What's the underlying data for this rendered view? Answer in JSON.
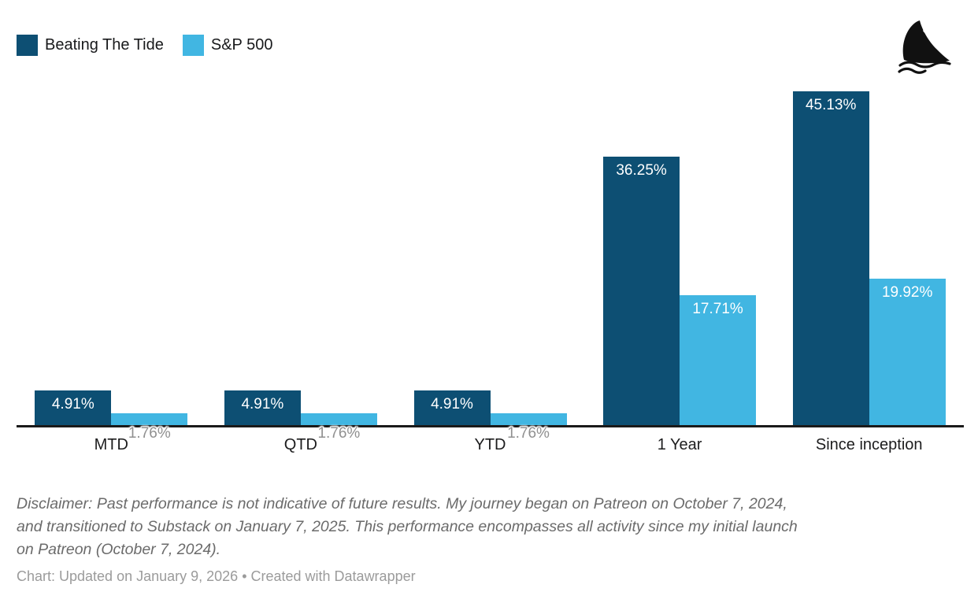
{
  "chart_data": {
    "type": "bar",
    "categories": [
      "MTD",
      "QTD",
      "YTD",
      "1 Year",
      "Since inception"
    ],
    "series": [
      {
        "name": "Beating The Tide",
        "color": "#0d4f73",
        "values": [
          4.91,
          4.91,
          4.91,
          36.25,
          45.13
        ]
      },
      {
        "name": "S&P 500",
        "color": "#41b6e2",
        "values": [
          1.76,
          1.76,
          1.76,
          17.71,
          19.92
        ]
      }
    ],
    "value_format": "0.00%",
    "data_labels": [
      "4.91%",
      "4.91%",
      "4.91%",
      "36.25%",
      "45.13%",
      "1.76%",
      "1.76%",
      "1.76%",
      "17.71%",
      "19.92%"
    ],
    "ylim": [
      0,
      47
    ],
    "grid": false,
    "legend_position": "top-left",
    "xlabel": "",
    "ylabel": ""
  },
  "icons": {
    "logo": "shark-fin-icon"
  },
  "colors": {
    "background": "#ffffff",
    "axis": "#1a1a1a",
    "outside_label": "#909090",
    "series_dark": "#0d4f73",
    "series_light": "#41b6e2"
  },
  "disclaimer": {
    "lines": [
      "Disclaimer: Past performance is not indicative of future results. My journey began on Patreon on October 7, 2024,",
      "and transitioned to Substack on January 7, 2025. This performance encompasses all activity since my initial launch",
      "on Patreon (October 7, 2024)."
    ]
  },
  "footer": {
    "text": "Chart: Updated on January 9, 2026 • Created with Datawrapper"
  }
}
